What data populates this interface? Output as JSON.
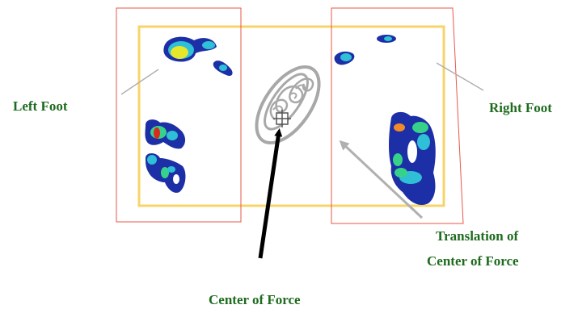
{
  "labels": {
    "left_foot": "Left Foot",
    "right_foot": "Right Foot",
    "center_of_force": "Center of Force",
    "translation_line1": "Translation of",
    "translation_line2": "Center of Force"
  },
  "colors": {
    "label_text": "#1e6b1e",
    "pressure_mat_border": "#f7d46a",
    "foot_box_border": "#e8574a",
    "leader_line": "#b0b0b0",
    "center_arrow": "#000000",
    "trajectory": "#a8a8a8",
    "pressure_low": "#1c2fa6",
    "pressure_mid": "#2fbfd6",
    "pressure_midhigh": "#37d28a",
    "pressure_high": "#e6e62a",
    "pressure_peak": "#d92a1e"
  }
}
